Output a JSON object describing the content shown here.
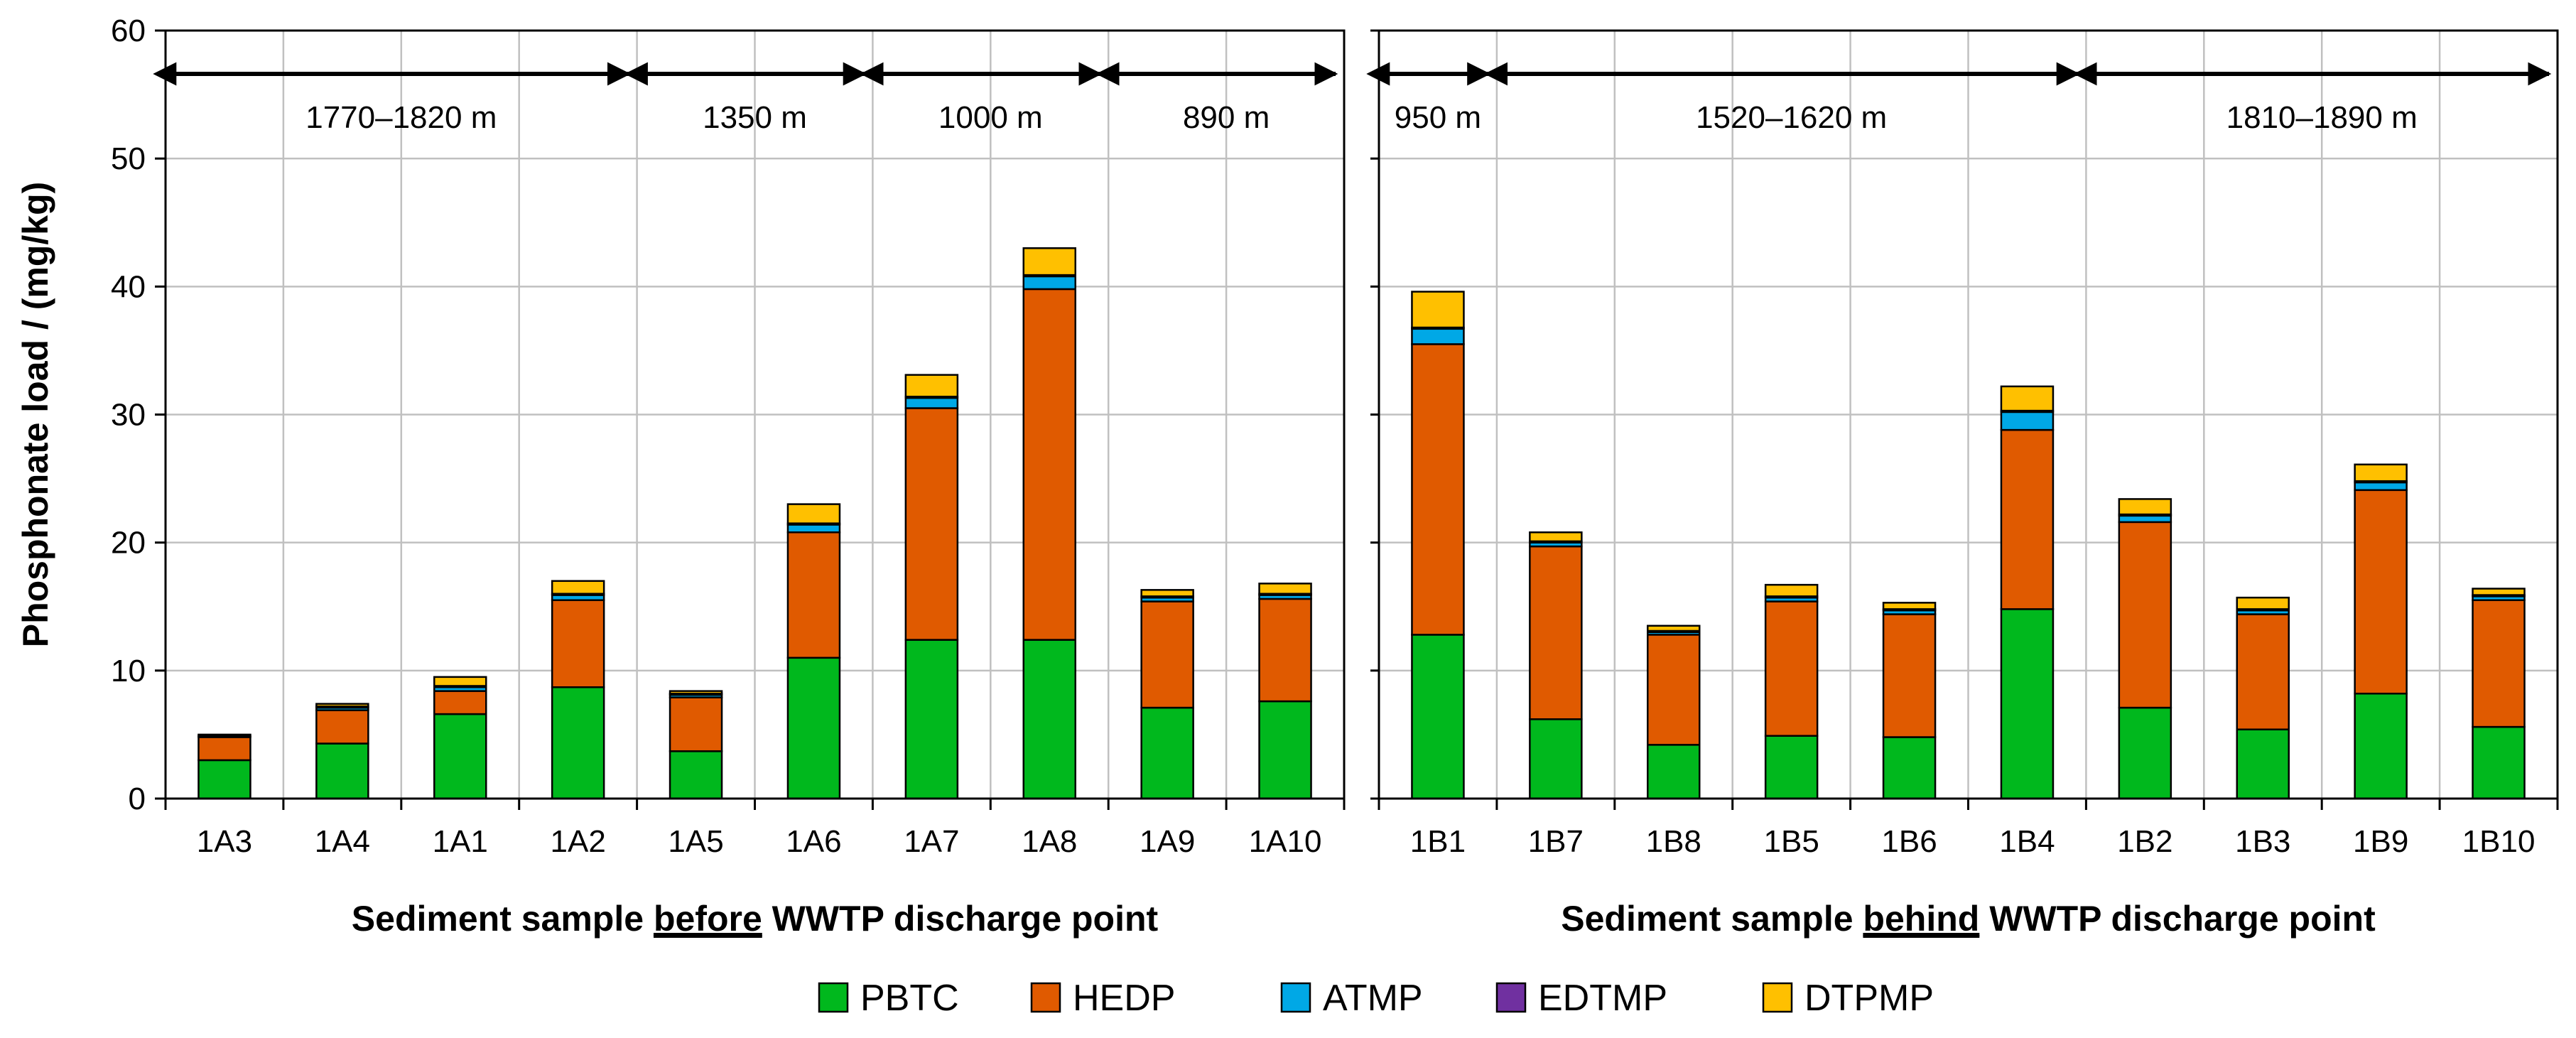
{
  "chart_data": {
    "type": "bar",
    "stacked": true,
    "ylabel": "Phosphonate load / (mg/kg)",
    "ylim": [
      0,
      60
    ],
    "yticks": [
      "0",
      "10",
      "20",
      "30",
      "40",
      "50",
      "60"
    ],
    "grid": true,
    "colors": {
      "PBTC": "#00b81d",
      "HEDP": "#e05a00",
      "ATMP": "#00a8e6",
      "EDTMP": "#7030a0",
      "DTPMP": "#ffc000"
    },
    "legend": [
      "PBTC",
      "HEDP",
      "ATMP",
      "EDTMP",
      "DTPMP"
    ],
    "panels": [
      {
        "xlabel_before": "Sediment sample ",
        "xlabel_emph": "before",
        "xlabel_after": " WWTP discharge point",
        "categories": [
          "1A3",
          "1A4",
          "1A1",
          "1A2",
          "1A5",
          "1A6",
          "1A7",
          "1A8",
          "1A9",
          "1A10"
        ],
        "series": [
          {
            "name": "PBTC",
            "values": [
              3.0,
              4.3,
              6.6,
              8.7,
              3.7,
              11.0,
              12.4,
              12.4,
              7.1,
              7.6
            ]
          },
          {
            "name": "HEDP",
            "values": [
              1.8,
              2.6,
              1.8,
              6.8,
              4.2,
              9.8,
              18.1,
              27.4,
              8.3,
              8.0
            ]
          },
          {
            "name": "ATMP",
            "values": [
              0.1,
              0.2,
              0.3,
              0.4,
              0.2,
              0.6,
              0.8,
              1.0,
              0.3,
              0.3
            ]
          },
          {
            "name": "EDTMP",
            "values": [
              0.0,
              0.1,
              0.1,
              0.1,
              0.1,
              0.1,
              0.1,
              0.1,
              0.1,
              0.1
            ]
          },
          {
            "name": "DTPMP",
            "values": [
              0.1,
              0.2,
              0.7,
              1.0,
              0.2,
              1.5,
              1.7,
              2.1,
              0.5,
              0.8
            ]
          }
        ],
        "ranges": [
          {
            "label": "1770–1820 m",
            "from": 0,
            "to": 4
          },
          {
            "label": "1350 m",
            "from": 4,
            "to": 6
          },
          {
            "label": "1000 m",
            "from": 6,
            "to": 8
          },
          {
            "label": "890 m",
            "from": 8,
            "to": 10
          }
        ]
      },
      {
        "xlabel_before": "Sediment sample ",
        "xlabel_emph": "behind",
        "xlabel_after": " WWTP discharge point",
        "categories": [
          "1B1",
          "1B7",
          "1B8",
          "1B5",
          "1B6",
          "1B4",
          "1B2",
          "1B3",
          "1B9",
          "1B10"
        ],
        "series": [
          {
            "name": "PBTC",
            "values": [
              12.8,
              6.2,
              4.2,
              4.9,
              4.8,
              14.8,
              7.1,
              5.4,
              8.2,
              5.6
            ]
          },
          {
            "name": "HEDP",
            "values": [
              22.7,
              13.5,
              8.6,
              10.5,
              9.6,
              14.0,
              14.5,
              9.0,
              15.9,
              9.9
            ]
          },
          {
            "name": "ATMP",
            "values": [
              1.2,
              0.3,
              0.2,
              0.3,
              0.3,
              1.4,
              0.5,
              0.3,
              0.6,
              0.3
            ]
          },
          {
            "name": "EDTMP",
            "values": [
              0.1,
              0.1,
              0.1,
              0.1,
              0.1,
              0.1,
              0.1,
              0.1,
              0.1,
              0.1
            ]
          },
          {
            "name": "DTPMP",
            "values": [
              2.8,
              0.7,
              0.4,
              0.9,
              0.5,
              1.9,
              1.2,
              0.9,
              1.3,
              0.5
            ]
          }
        ],
        "ranges": [
          {
            "label": "950 m",
            "from": 0,
            "to": 1
          },
          {
            "label": "1520–1620 m",
            "from": 1,
            "to": 6
          },
          {
            "label": "1810–1890 m",
            "from": 6,
            "to": 10
          }
        ]
      }
    ]
  }
}
